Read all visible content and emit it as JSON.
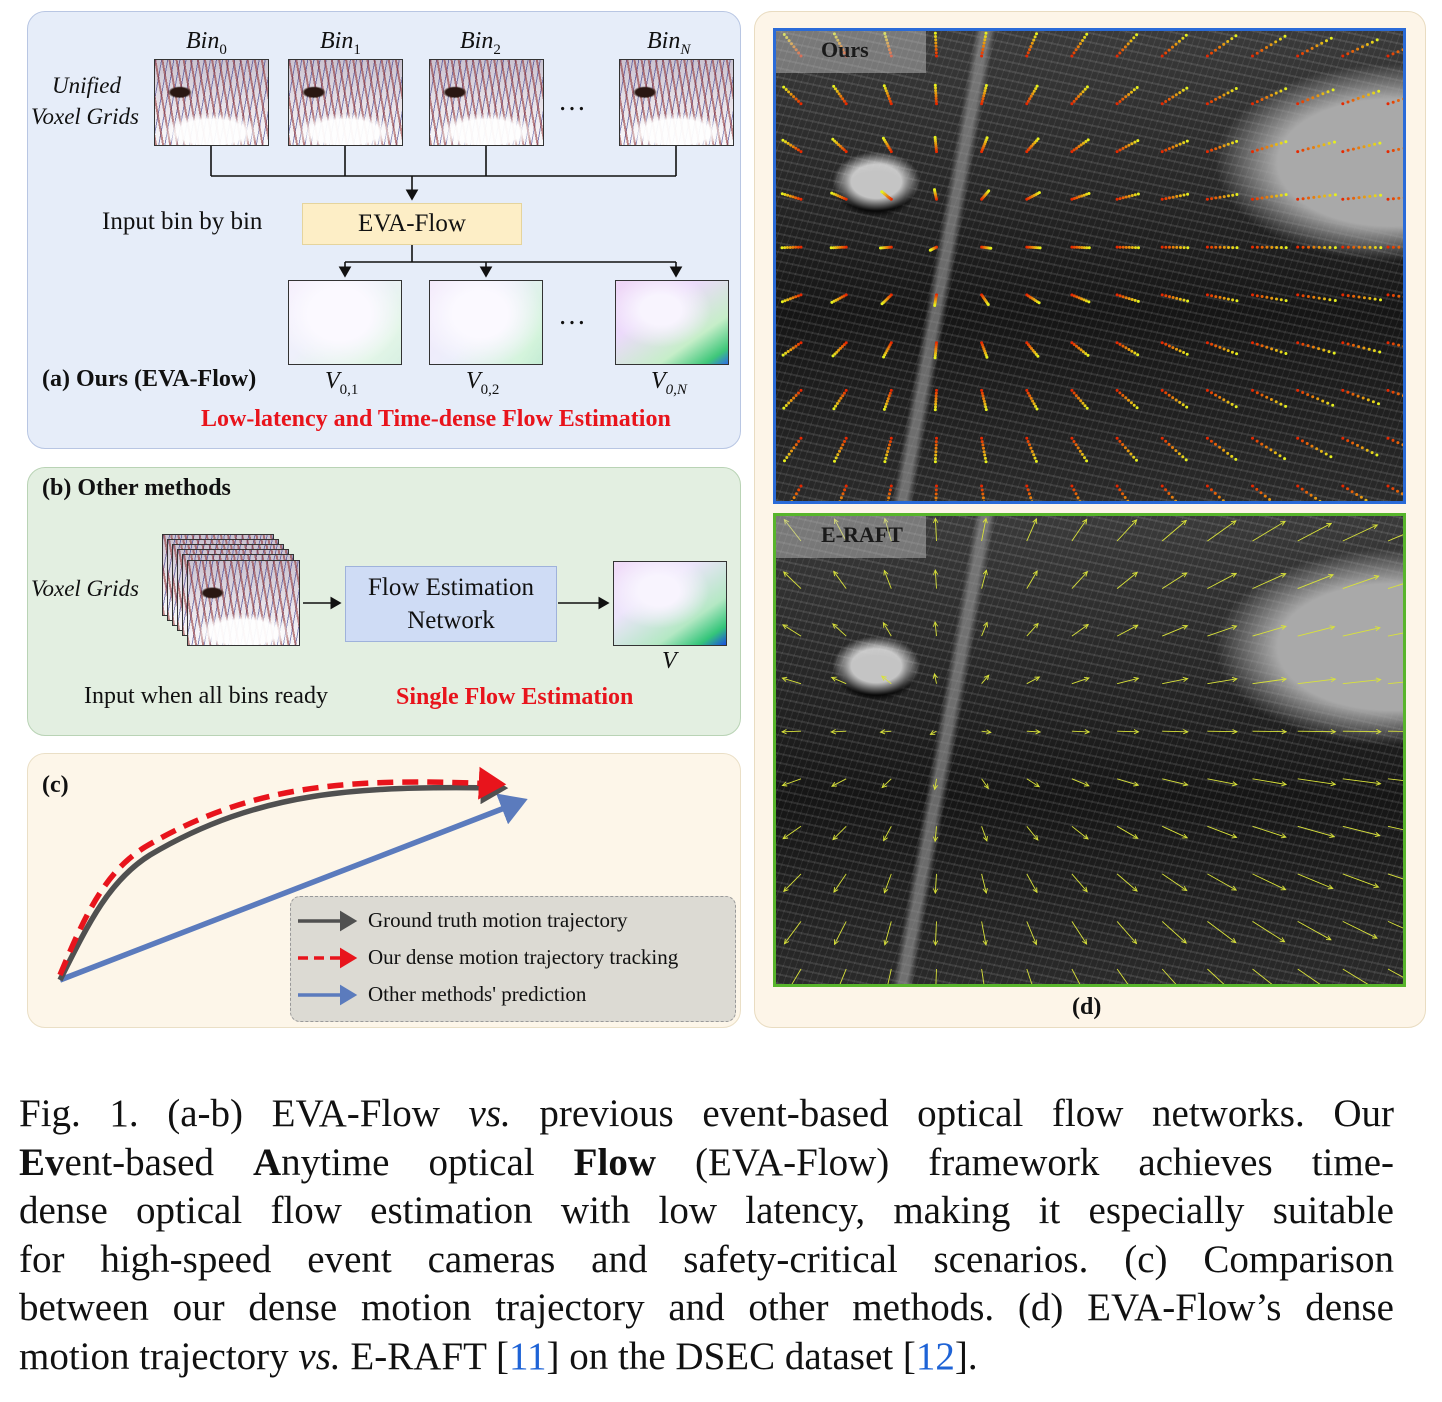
{
  "panel_a": {
    "bin_labels": [
      {
        "base": "Bin",
        "sub": "0"
      },
      {
        "base": "Bin",
        "sub": "1"
      },
      {
        "base": "Bin",
        "sub": "2"
      },
      {
        "base": "Bin",
        "sub": "N"
      }
    ],
    "side_label_line1": "Unified",
    "side_label_line2": "Voxel Grids",
    "input_text": "Input bin by bin",
    "model_box": "EVA-Flow",
    "dots": "…",
    "output_labels": [
      {
        "base": "V",
        "sub": "0,1"
      },
      {
        "base": "V",
        "sub": "0,2"
      },
      {
        "base": "V",
        "sub": "0,N"
      }
    ],
    "title": "(a) Ours (EVA-Flow)",
    "highlight": "Low-latency and Time-dense Flow Estimation"
  },
  "panel_b": {
    "title": "(b) Other methods",
    "side_label": "Voxel Grids",
    "network_line1": "Flow Estimation",
    "network_line2": "Network",
    "output_label": "V",
    "input_text": "Input when all bins ready",
    "highlight": "Single Flow Estimation"
  },
  "panel_c": {
    "title": "(c)",
    "legend": [
      {
        "label": "Ground truth motion trajectory",
        "color": "#505050",
        "style": "solid"
      },
      {
        "label": "Our dense motion trajectory tracking",
        "color": "#e8141c",
        "style": "dashed"
      },
      {
        "label": "Other methods' prediction",
        "color": "#5b7bbd",
        "style": "solid"
      }
    ]
  },
  "panel_d": {
    "top_tag": "Ours",
    "bottom_tag": "E-RAFT",
    "label": "(d)",
    "top_border_color": "#2a6bd8",
    "bottom_border_color": "#58b52b"
  },
  "caption": {
    "lines": [
      [
        "Fig. 1.  (a-b) EVA-Flow ",
        {
          "i": "vs."
        },
        " previous event-based optical flow networks. Our"
      ],
      [
        {
          "b": "Ev"
        },
        "ent-based ",
        {
          "b": "A"
        },
        "nytime optical ",
        {
          "b": "Flow"
        },
        " (EVA-Flow) framework achieves time-"
      ],
      [
        "dense optical flow estimation with low latency, making it especially suitable"
      ],
      [
        "for high-speed event cameras and safety-critical scenarios. (c) Comparison"
      ],
      [
        "between our dense motion trajectory and other methods. (d) EVA-Flow’s dense"
      ],
      [
        "motion trajectory ",
        {
          "i": "vs."
        },
        " E-RAFT [",
        {
          "ref": "11"
        },
        "] on the DSEC dataset [",
        {
          "ref": "12"
        },
        "]."
      ]
    ]
  }
}
